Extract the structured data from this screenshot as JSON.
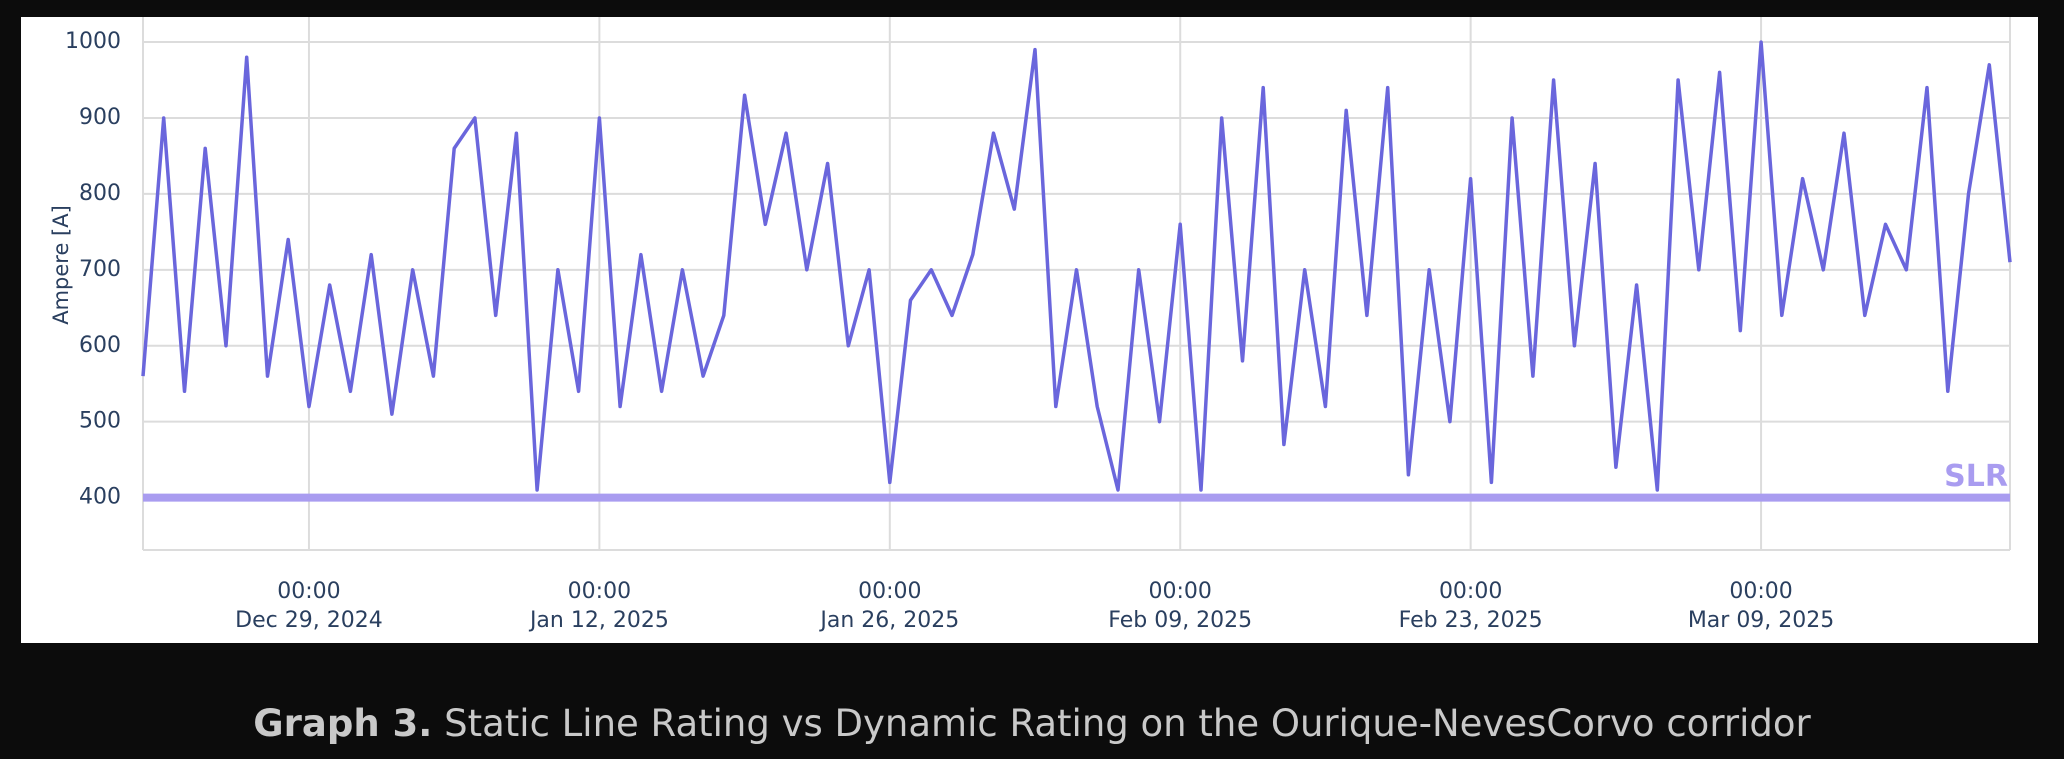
{
  "chart_data": {
    "type": "line",
    "y_label": "Ampere [A]",
    "caption": {
      "label": "Graph 3.",
      "text": "Static Line Rating vs Dynamic Rating on the Ourique-NevesCorvo corridor"
    },
    "xlim": [
      "2024-12-21",
      "2025-03-21"
    ],
    "xticks": [
      {
        "value": "2024-12-29",
        "label": [
          "00:00",
          "Dec 29, 2024"
        ]
      },
      {
        "value": "2025-01-12",
        "label": [
          "00:00",
          "Jan 12, 2025"
        ]
      },
      {
        "value": "2025-01-26",
        "label": [
          "00:00",
          "Jan 26, 2025"
        ]
      },
      {
        "value": "2025-02-09",
        "label": [
          "00:00",
          "Feb 09, 2025"
        ]
      },
      {
        "value": "2025-02-23",
        "label": [
          "00:00",
          "Feb 23, 2025"
        ]
      },
      {
        "value": "2025-03-09",
        "label": [
          "00:00",
          "Mar 09, 2025"
        ]
      }
    ],
    "ylim": [
      331,
      1033
    ],
    "yticks": [
      400,
      500,
      600,
      700,
      800,
      900,
      1000
    ],
    "grid": true,
    "series": [
      {
        "name": "Dynamic Rating",
        "color": "#6a66dc",
        "x": [
          "2024-12-21",
          "2024-12-22",
          "2024-12-23",
          "2024-12-24",
          "2024-12-25",
          "2024-12-26",
          "2024-12-27",
          "2024-12-28",
          "2024-12-29",
          "2024-12-30",
          "2024-12-31",
          "2025-01-01",
          "2025-01-02",
          "2025-01-03",
          "2025-01-04",
          "2025-01-05",
          "2025-01-06",
          "2025-01-07",
          "2025-01-08",
          "2025-01-09",
          "2025-01-10",
          "2025-01-11",
          "2025-01-12",
          "2025-01-13",
          "2025-01-14",
          "2025-01-15",
          "2025-01-16",
          "2025-01-17",
          "2025-01-18",
          "2025-01-19",
          "2025-01-20",
          "2025-01-21",
          "2025-01-22",
          "2025-01-23",
          "2025-01-24",
          "2025-01-25",
          "2025-01-26",
          "2025-01-27",
          "2025-01-28",
          "2025-01-29",
          "2025-01-30",
          "2025-01-31",
          "2025-02-01",
          "2025-02-02",
          "2025-02-03",
          "2025-02-04",
          "2025-02-05",
          "2025-02-06",
          "2025-02-07",
          "2025-02-08",
          "2025-02-09",
          "2025-02-10",
          "2025-02-11",
          "2025-02-12",
          "2025-02-13",
          "2025-02-14",
          "2025-02-15",
          "2025-02-16",
          "2025-02-17",
          "2025-02-18",
          "2025-02-19",
          "2025-02-20",
          "2025-02-21",
          "2025-02-22",
          "2025-02-23",
          "2025-02-24",
          "2025-02-25",
          "2025-02-26",
          "2025-02-27",
          "2025-02-28",
          "2025-03-01",
          "2025-03-02",
          "2025-03-03",
          "2025-03-04",
          "2025-03-05",
          "2025-03-06",
          "2025-03-07",
          "2025-03-08",
          "2025-03-09",
          "2025-03-10",
          "2025-03-11",
          "2025-03-12",
          "2025-03-13",
          "2025-03-14",
          "2025-03-15",
          "2025-03-16",
          "2025-03-17",
          "2025-03-18",
          "2025-03-19",
          "2025-03-20",
          "2025-03-21"
        ],
        "values": [
          560,
          900,
          540,
          860,
          600,
          980,
          560,
          740,
          520,
          680,
          540,
          720,
          510,
          700,
          560,
          860,
          900,
          640,
          880,
          410,
          700,
          540,
          900,
          520,
          720,
          540,
          700,
          560,
          640,
          930,
          760,
          880,
          700,
          840,
          600,
          700,
          420,
          660,
          700,
          640,
          720,
          880,
          780,
          990,
          520,
          700,
          520,
          410,
          700,
          500,
          760,
          410,
          900,
          580,
          940,
          470,
          700,
          520,
          910,
          640,
          940,
          430,
          700,
          500,
          820,
          420,
          900,
          560,
          950,
          600,
          840,
          440,
          680,
          410,
          950,
          700,
          960,
          620,
          1000,
          640,
          820,
          700,
          880,
          640,
          760,
          700,
          940,
          540,
          800,
          970,
          710
        ]
      },
      {
        "name": "SLR",
        "color": "#a99cf0",
        "x": [
          "2024-12-21",
          "2025-03-21"
        ],
        "values": [
          400,
          400
        ]
      }
    ]
  }
}
